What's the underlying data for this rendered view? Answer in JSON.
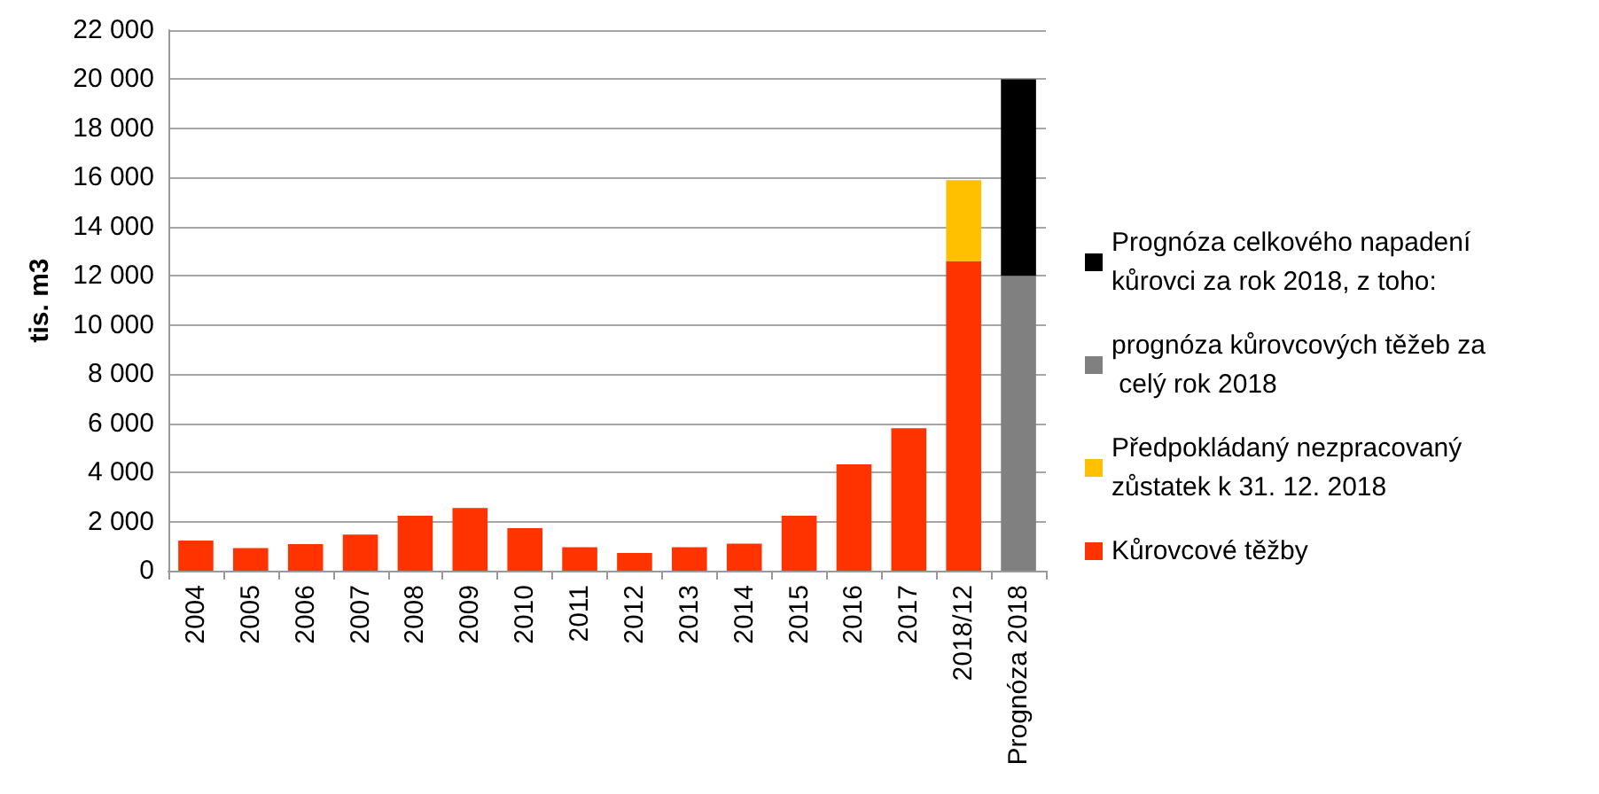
{
  "chart_data": {
    "type": "bar",
    "stacked": true,
    "ylabel": "tis. m3",
    "categories": [
      "2004",
      "2005",
      "2006",
      "2007",
      "2008",
      "2009",
      "2010",
      "2011",
      "2012",
      "2013",
      "2014",
      "2015",
      "2016",
      "2017",
      "2018/12",
      "Prognóza 2018"
    ],
    "series": [
      {
        "name": "Kůrovcové těžby",
        "color": "#ff3300",
        "values": [
          1230,
          920,
          1080,
          1470,
          2240,
          2550,
          1730,
          960,
          720,
          960,
          1100,
          2240,
          4330,
          5800,
          12600,
          null
        ]
      },
      {
        "name": "Předpokládaný nezpracovaný zůstatek k 31. 12. 2018",
        "color": "#ffc000",
        "values": [
          null,
          null,
          null,
          null,
          null,
          null,
          null,
          null,
          null,
          null,
          null,
          null,
          null,
          null,
          3300,
          null
        ]
      },
      {
        "name": "prognóza kůrovcových těžeb za celý rok 2018",
        "color": "#808080",
        "values": [
          null,
          null,
          null,
          null,
          null,
          null,
          null,
          null,
          null,
          null,
          null,
          null,
          null,
          null,
          null,
          12000
        ]
      },
      {
        "name": "Prognóza celkového napadení kůrovci za rok 2018, z toho:",
        "color": "#000000",
        "values": [
          null,
          null,
          null,
          null,
          null,
          null,
          null,
          null,
          null,
          null,
          null,
          null,
          null,
          null,
          null,
          8000
        ]
      }
    ],
    "ylim": [
      0,
      22000
    ],
    "yticks": [
      0,
      2000,
      4000,
      6000,
      8000,
      10000,
      12000,
      14000,
      16000,
      18000,
      20000,
      22000
    ],
    "grid": "y",
    "legend": "right"
  }
}
